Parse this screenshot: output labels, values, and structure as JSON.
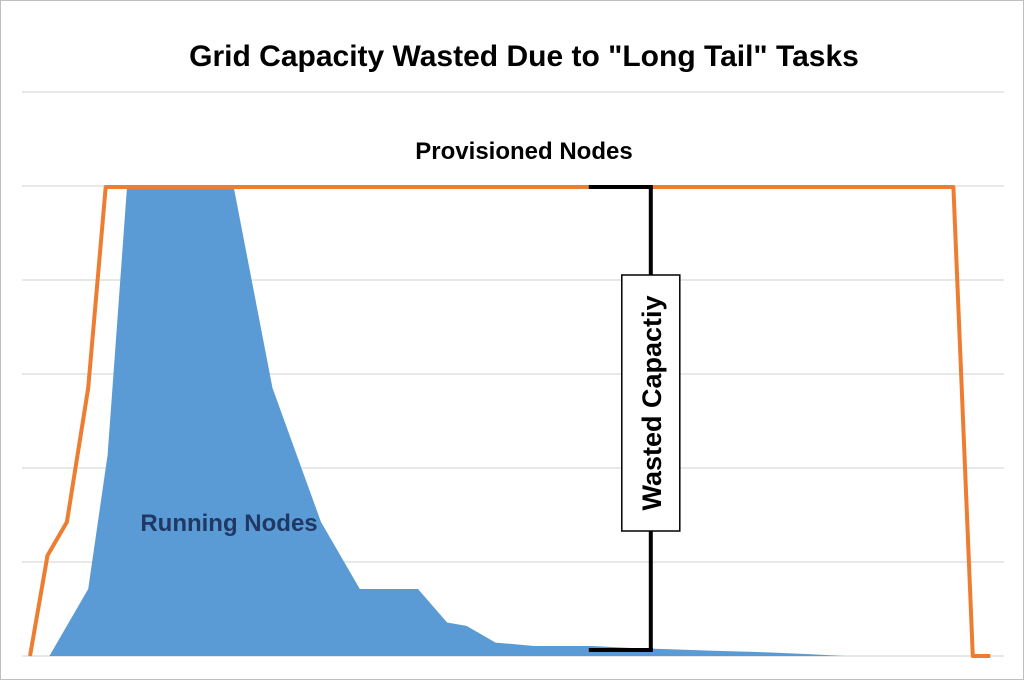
{
  "chart_data": {
    "type": "area",
    "title": "Grid Capacity Wasted Due to \"Long Tail\" Tasks",
    "xlabel": "",
    "ylabel": "",
    "grid": true,
    "ylim": [
      0,
      7
    ],
    "xlim": [
      0,
      100
    ],
    "series": [
      {
        "name": "Provisioned Nodes",
        "kind": "line",
        "color": "#ED7D31",
        "points": [
          [
            0,
            0
          ],
          [
            1.8,
            1.5
          ],
          [
            3.8,
            2
          ],
          [
            6,
            4
          ],
          [
            7.8,
            7
          ],
          [
            15,
            7
          ],
          [
            30,
            7
          ],
          [
            45,
            7
          ],
          [
            60,
            7
          ],
          [
            75,
            7
          ],
          [
            85,
            7
          ],
          [
            95.2,
            7
          ],
          [
            97.2,
            0
          ],
          [
            99,
            0
          ]
        ]
      },
      {
        "name": "Running Nodes",
        "kind": "area",
        "color": "#5B9BD5",
        "points": [
          [
            2,
            0
          ],
          [
            6,
            1
          ],
          [
            8,
            3
          ],
          [
            10,
            7
          ],
          [
            14,
            7
          ],
          [
            19,
            7
          ],
          [
            21,
            7
          ],
          [
            25,
            4
          ],
          [
            30,
            2
          ],
          [
            34,
            1
          ],
          [
            36,
            1
          ],
          [
            40,
            1
          ],
          [
            43,
            0.5
          ],
          [
            45,
            0.45
          ],
          [
            48,
            0.2
          ],
          [
            52,
            0.15
          ],
          [
            58,
            0.15
          ],
          [
            62,
            0.12
          ],
          [
            66,
            0.1
          ],
          [
            70,
            0.08
          ],
          [
            75,
            0.06
          ],
          [
            80,
            0.03
          ],
          [
            84,
            0
          ],
          [
            90,
            0
          ],
          [
            97,
            0
          ]
        ]
      }
    ],
    "annotations": [
      {
        "text": "Provisioned Nodes",
        "color": "#000000"
      },
      {
        "text": "Running Nodes",
        "color": "#1F3864"
      },
      {
        "text": "Wasted Capactiy",
        "color": "#000000",
        "bracket_x": 64,
        "from_y": 0,
        "to_y": 7
      }
    ]
  }
}
